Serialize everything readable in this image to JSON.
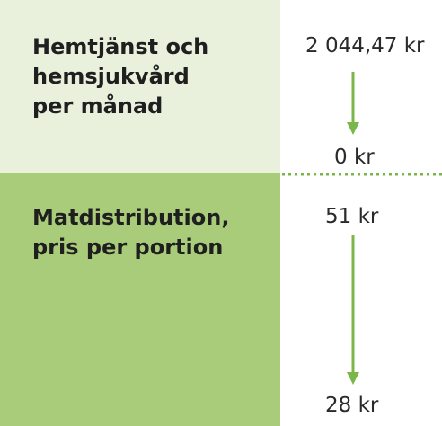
{
  "rows": [
    {
      "label": [
        "Hemtjänst och",
        "hemsjukvård",
        "per månad"
      ],
      "from": "2 044,47 kr",
      "to": "0 kr"
    },
    {
      "label": [
        "Matdistribution,",
        "pris per portion"
      ],
      "from": "51 kr",
      "to": "28 kr"
    }
  ]
}
